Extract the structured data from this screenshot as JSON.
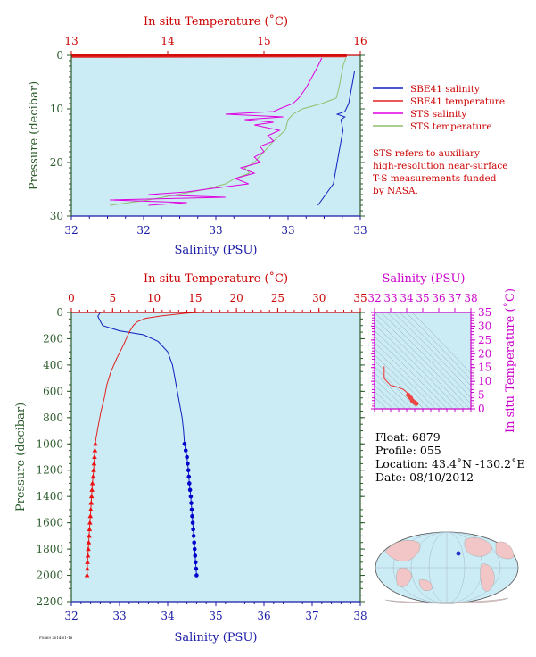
{
  "colors": {
    "plot_bg": "#ccecf5",
    "salinity": "#0d1fbf",
    "temperature": "#e02020",
    "sts_salinity": "#e000e0",
    "sts_temperature": "#8fbf6f",
    "axis_salinity": "#1a1aa6",
    "axis_temperature": "#cc0000",
    "axis_pressure": "#2b5a2b",
    "axis_ts": "#cc00cc"
  },
  "chart_data": [
    {
      "id": "near_surface",
      "type": "line",
      "top_label": "In situ Temperature (˚C)",
      "top_ticks": [
        "13",
        "14",
        "15",
        "16"
      ],
      "top_range": [
        13,
        16
      ],
      "bottom_label": "Salinity (PSU)",
      "bottom_ticks": [
        "32",
        "32",
        "33",
        "33",
        "33"
      ],
      "bottom_range": [
        32,
        33.5
      ],
      "ylabel": "Pressure (decibar)",
      "y_ticks": [
        "0",
        "10",
        "20",
        "30"
      ],
      "y_range": [
        0,
        30
      ],
      "series": [
        {
          "name": "SBE41 salinity",
          "axis": "bottom",
          "color": "salinity",
          "points": [
            [
              33.47,
              3
            ],
            [
              33.46,
              5
            ],
            [
              33.45,
              7
            ],
            [
              33.44,
              9
            ],
            [
              33.42,
              10.5
            ],
            [
              33.38,
              11
            ],
            [
              33.42,
              11.5
            ],
            [
              33.4,
              12
            ],
            [
              33.41,
              14
            ],
            [
              33.4,
              16
            ],
            [
              33.39,
              18
            ],
            [
              33.38,
              20
            ],
            [
              33.37,
              22
            ],
            [
              33.36,
              24
            ],
            [
              33.34,
              25
            ],
            [
              33.32,
              26
            ],
            [
              33.3,
              27
            ],
            [
              33.28,
              28
            ]
          ]
        },
        {
          "name": "SBE41 temperature",
          "axis": "top",
          "color": "temperature",
          "points": [
            [
              13.0,
              0
            ],
            [
              15.85,
              0
            ],
            [
              15.85,
              0.2
            ],
            [
              13.0,
              0.3
            ]
          ]
        },
        {
          "name": "STS salinity",
          "axis": "bottom",
          "color": "sts_salinity",
          "points": [
            [
              33.3,
              0.5
            ],
            [
              33.28,
              2
            ],
            [
              33.25,
              4
            ],
            [
              33.22,
              6
            ],
            [
              33.18,
              8
            ],
            [
              33.15,
              9
            ],
            [
              33.08,
              10
            ],
            [
              33.05,
              10.5
            ],
            [
              32.8,
              11
            ],
            [
              33.1,
              11.5
            ],
            [
              32.9,
              12
            ],
            [
              33.05,
              12.5
            ],
            [
              32.95,
              13
            ],
            [
              33.08,
              14
            ],
            [
              33.02,
              15
            ],
            [
              33.05,
              16
            ],
            [
              32.98,
              17
            ],
            [
              33.0,
              18
            ],
            [
              32.95,
              19
            ],
            [
              32.98,
              20
            ],
            [
              32.88,
              21
            ],
            [
              32.95,
              22
            ],
            [
              32.85,
              23
            ],
            [
              32.92,
              24
            ],
            [
              32.7,
              25
            ],
            [
              32.6,
              25.5
            ],
            [
              32.4,
              26
            ],
            [
              32.8,
              26.5
            ],
            [
              32.2,
              27
            ],
            [
              32.6,
              27.5
            ],
            [
              32.4,
              28
            ]
          ]
        },
        {
          "name": "STS temperature",
          "axis": "top",
          "color": "sts_temperature",
          "points": [
            [
              15.85,
              0.5
            ],
            [
              15.82,
              2
            ],
            [
              15.8,
              4
            ],
            [
              15.78,
              6
            ],
            [
              15.75,
              8
            ],
            [
              15.6,
              9
            ],
            [
              15.4,
              10
            ],
            [
              15.3,
              11
            ],
            [
              15.25,
              12
            ],
            [
              15.22,
              14
            ],
            [
              15.1,
              16
            ],
            [
              15.0,
              18
            ],
            [
              14.9,
              20
            ],
            [
              14.8,
              21
            ],
            [
              14.85,
              22
            ],
            [
              14.7,
              23
            ],
            [
              14.6,
              24
            ],
            [
              14.4,
              25
            ],
            [
              14.1,
              26
            ],
            [
              13.8,
              27
            ],
            [
              13.4,
              28
            ]
          ]
        }
      ]
    },
    {
      "id": "full_profile",
      "type": "line",
      "top_label": "In situ Temperature (˚C)",
      "top_ticks": [
        "0",
        "5",
        "10",
        "15",
        "20",
        "25",
        "30",
        "35"
      ],
      "top_range": [
        0,
        35
      ],
      "bottom_label": "Salinity (PSU)",
      "bottom_ticks": [
        "32",
        "33",
        "34",
        "35",
        "36",
        "37",
        "38"
      ],
      "bottom_range": [
        32,
        38
      ],
      "ylabel": "Pressure (decibar)",
      "y_ticks": [
        "0",
        "200",
        "400",
        "600",
        "800",
        "1000",
        "1200",
        "1400",
        "1600",
        "1800",
        "2000",
        "2200"
      ],
      "y_range": [
        0,
        2200
      ],
      "series": [
        {
          "name": "Salinity",
          "axis": "bottom",
          "color": "salinity",
          "points": [
            [
              32.6,
              0
            ],
            [
              32.55,
              30
            ],
            [
              32.65,
              100
            ],
            [
              33.0,
              140
            ],
            [
              33.5,
              170
            ],
            [
              33.8,
              220
            ],
            [
              34.0,
              300
            ],
            [
              34.1,
              400
            ],
            [
              34.15,
              500
            ],
            [
              34.2,
              600
            ],
            [
              34.25,
              700
            ],
            [
              34.3,
              800
            ],
            [
              34.33,
              900
            ],
            [
              34.35,
              1000
            ],
            [
              34.4,
              1100
            ],
            [
              34.43,
              1200
            ],
            [
              34.45,
              1300
            ],
            [
              34.48,
              1400
            ],
            [
              34.5,
              1500
            ],
            [
              34.52,
              1600
            ],
            [
              34.54,
              1700
            ],
            [
              34.56,
              1800
            ],
            [
              34.58,
              1900
            ],
            [
              34.6,
              2000
            ]
          ]
        },
        {
          "name": "Temperature",
          "axis": "top",
          "color": "temperature",
          "points": [
            [
              15.5,
              0
            ],
            [
              14.0,
              5
            ],
            [
              12.5,
              15
            ],
            [
              11.0,
              25
            ],
            [
              9.0,
              45
            ],
            [
              8.0,
              70
            ],
            [
              7.5,
              100
            ],
            [
              7.0,
              150
            ],
            [
              6.3,
              250
            ],
            [
              5.5,
              350
            ],
            [
              4.8,
              450
            ],
            [
              4.3,
              550
            ],
            [
              4.0,
              650
            ],
            [
              3.6,
              750
            ],
            [
              3.3,
              850
            ],
            [
              3.0,
              950
            ],
            [
              2.9,
              1000
            ],
            [
              2.8,
              1100
            ],
            [
              2.7,
              1200
            ],
            [
              2.55,
              1300
            ],
            [
              2.45,
              1400
            ],
            [
              2.35,
              1500
            ],
            [
              2.25,
              1600
            ],
            [
              2.15,
              1700
            ],
            [
              2.05,
              1800
            ],
            [
              1.95,
              1900
            ],
            [
              1.9,
              2000
            ]
          ]
        }
      ],
      "markers": {
        "salinity_pressures": [
          1000,
          1050,
          1100,
          1150,
          1200,
          1250,
          1300,
          1350,
          1400,
          1450,
          1500,
          1550,
          1600,
          1650,
          1700,
          1750,
          1800,
          1850,
          1900,
          1950,
          2000
        ],
        "temperature_pressures": [
          1000,
          1050,
          1100,
          1150,
          1200,
          1250,
          1300,
          1350,
          1400,
          1450,
          1500,
          1550,
          1600,
          1650,
          1700,
          1750,
          1800,
          1850,
          1900,
          1950,
          2000
        ]
      }
    },
    {
      "id": "ts_diagram",
      "type": "scatter",
      "top_label": "Salinity (PSU)",
      "top_ticks": [
        "32",
        "33",
        "34",
        "35",
        "36",
        "37",
        "38"
      ],
      "top_range": [
        32,
        38
      ],
      "ylabel": "In situ Temperature (˚C)",
      "y_ticks": [
        "35",
        "30",
        "25",
        "20",
        "15",
        "10",
        "5",
        "0"
      ],
      "y_range": [
        0,
        35
      ],
      "series": [
        {
          "name": "T-S",
          "points": [
            [
              32.6,
              15.5
            ],
            [
              32.6,
              11
            ],
            [
              33.0,
              8.5
            ],
            [
              33.4,
              8.0
            ],
            [
              33.8,
              7.0
            ],
            [
              34.0,
              6.0
            ],
            [
              34.1,
              5.0
            ],
            [
              34.25,
              4.0
            ],
            [
              34.35,
              3.0
            ],
            [
              34.5,
              2.3
            ],
            [
              34.6,
              1.9
            ]
          ]
        }
      ]
    }
  ],
  "legend": {
    "items": [
      {
        "label": "SBE41 salinity",
        "color": "salinity"
      },
      {
        "label": "SBE41 temperature",
        "color": "temperature"
      },
      {
        "label": "STS salinity",
        "color": "sts_salinity"
      },
      {
        "label": "STS temperature",
        "color": "sts_temperature"
      }
    ],
    "note_lines": [
      "STS refers to auxiliary",
      "high-resolution near-surface",
      "T-S measurements funded",
      "by NASA."
    ]
  },
  "float_info": {
    "float": "Float:  6879",
    "profile": "Profile:  055",
    "location": "Location:  43.4˚N  -130.2˚E",
    "date": "Date:  08/10/2012"
  },
  "footer": "F5869 2014-01-18"
}
